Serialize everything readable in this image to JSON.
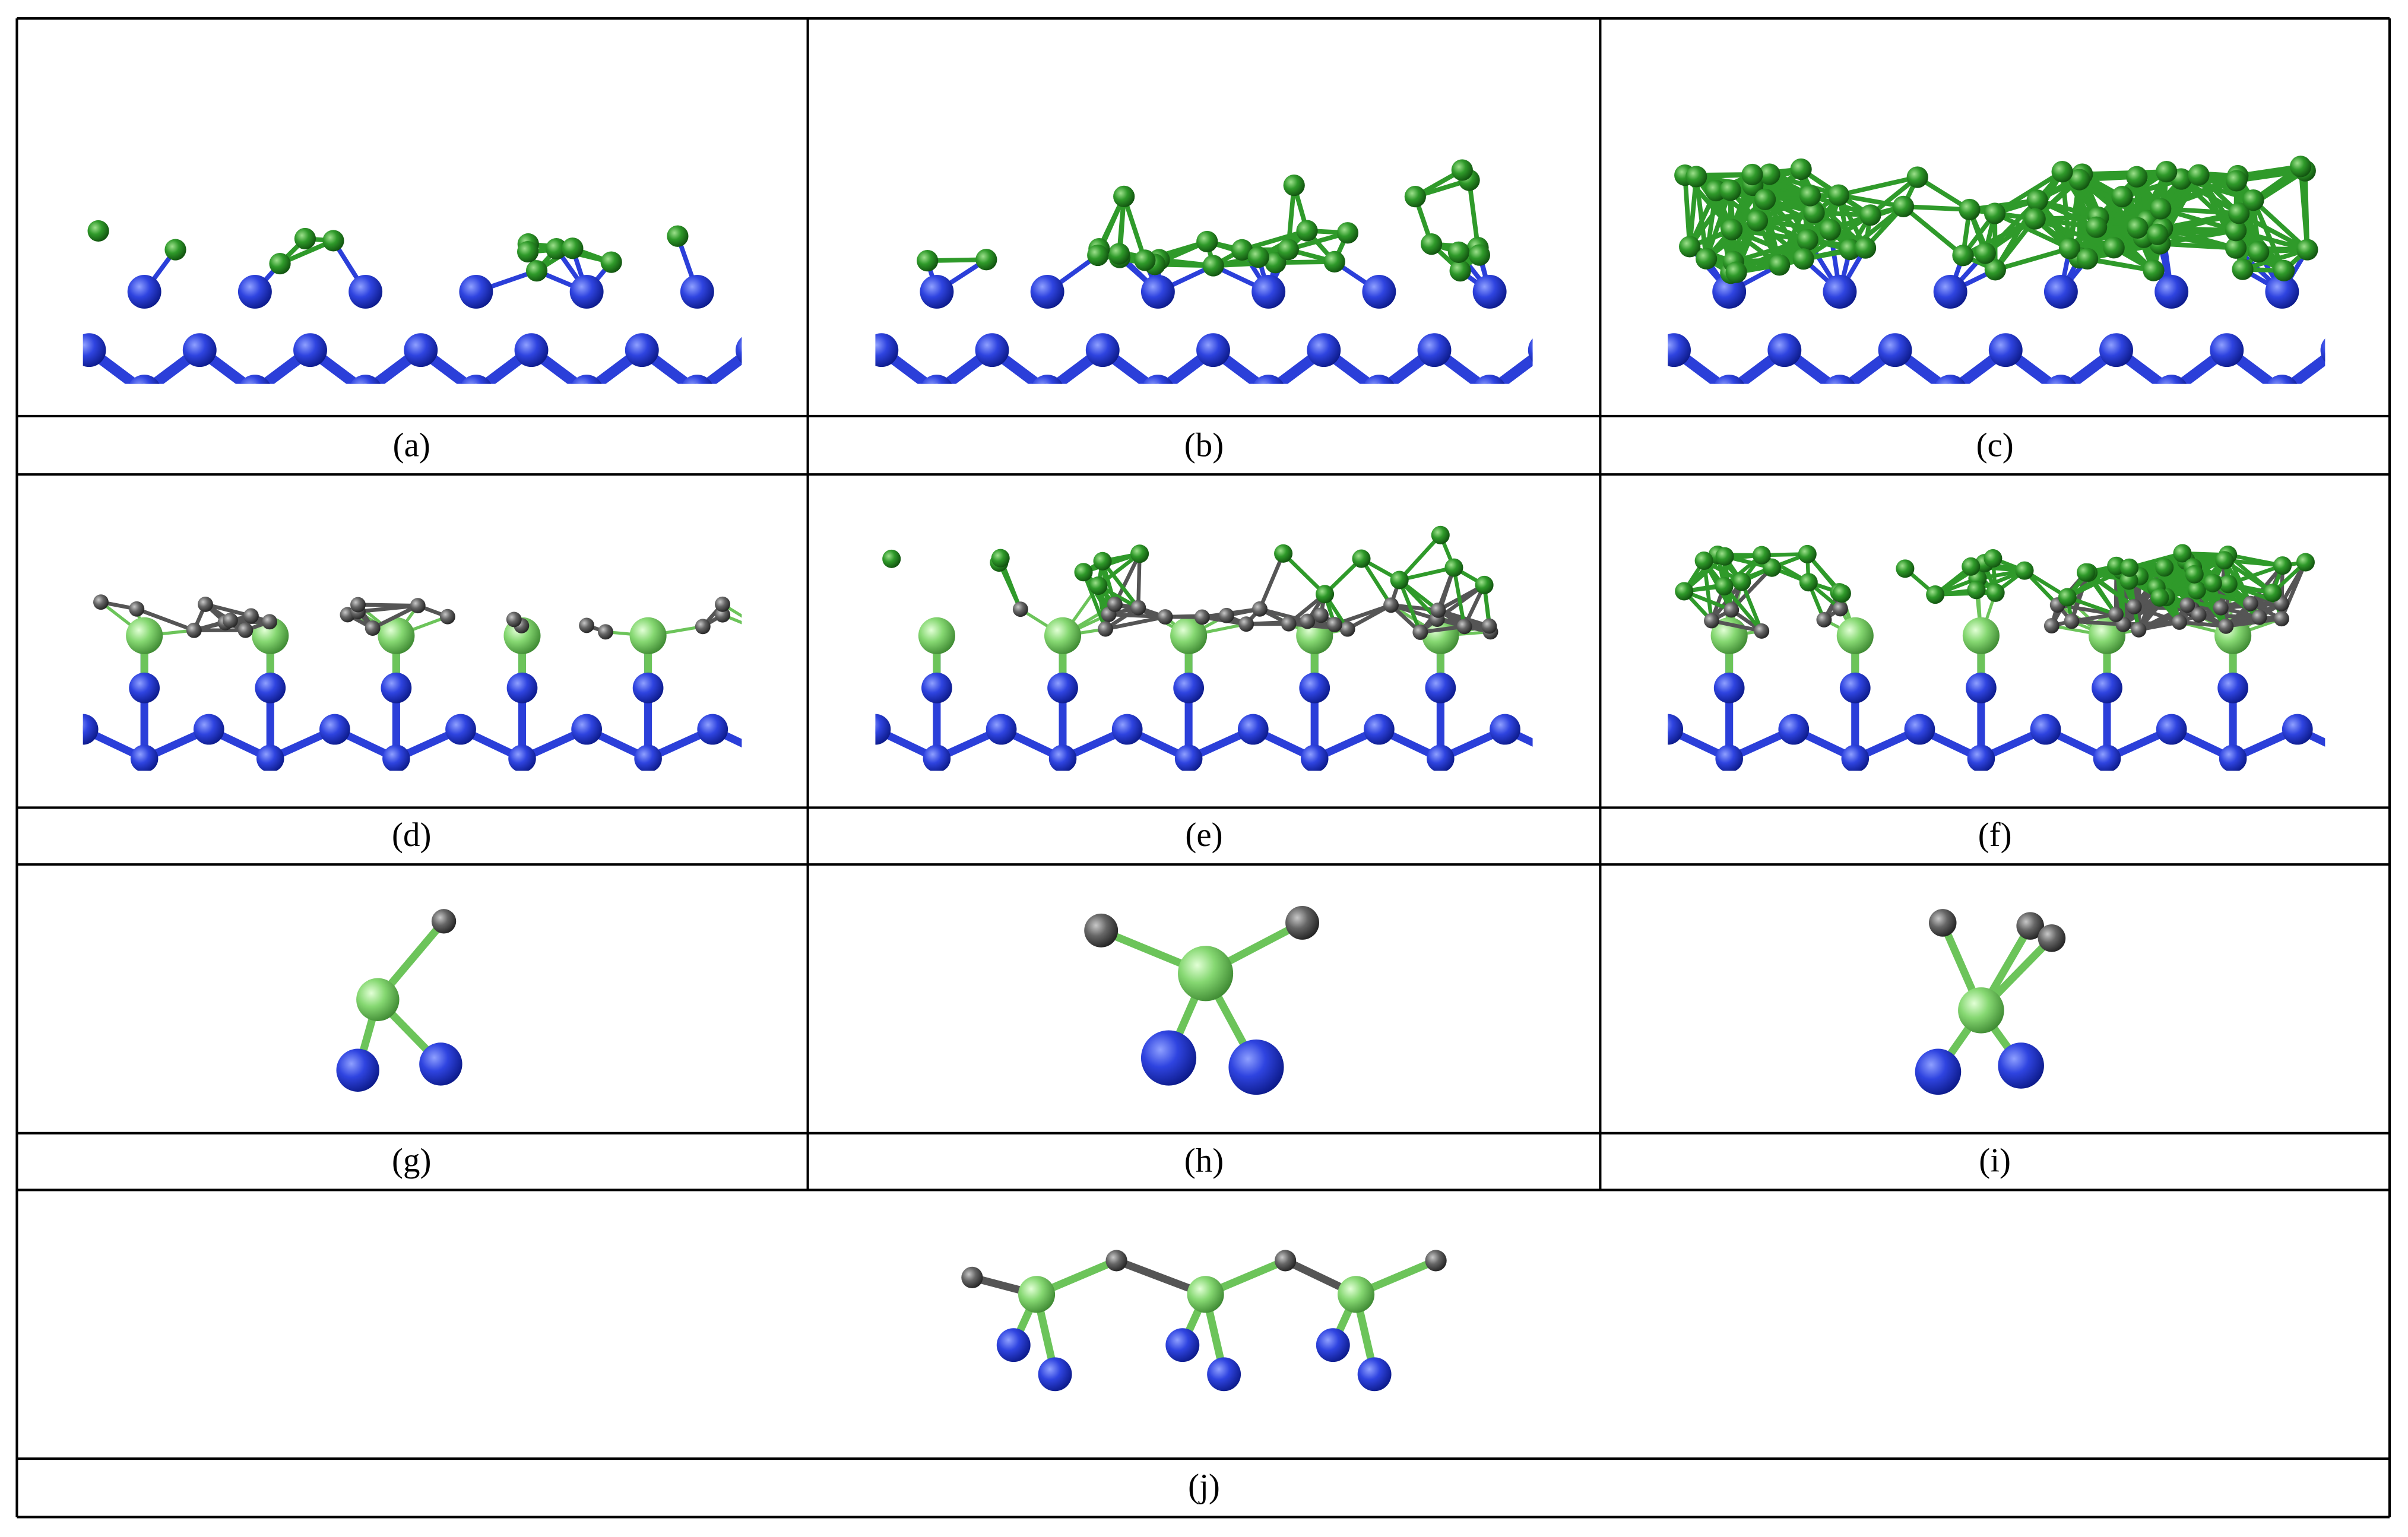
{
  "panels": [
    "(a)",
    "(b)",
    "(c)",
    "(d)",
    "(e)",
    "(f)",
    "(g)",
    "(h)",
    "(i)",
    "(j)"
  ]
}
